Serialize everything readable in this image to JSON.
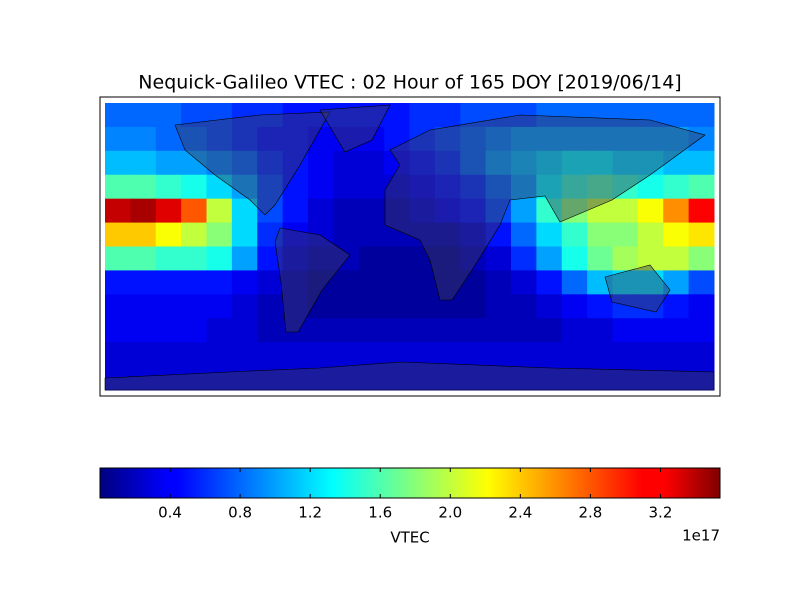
{
  "chart_data": {
    "type": "heatmap",
    "title": "Nequick-Galileo VTEC : 02 Hour of 165 DOY [2019/06/14]",
    "colormap": "jet",
    "clim": [
      0,
      3.54
    ],
    "colorbar_label": "VTEC",
    "colorbar_offset": "1e17",
    "colorbar_ticks": [
      0.4,
      0.8,
      1.2,
      1.6,
      {
        "value": 2,
        "label": "2.0"
      },
      2.4,
      2.8,
      3.2
    ],
    "z": [
      [
        0.8,
        0.8,
        0.8,
        0.7,
        0.7,
        0.6,
        0.6,
        0.5,
        0.5,
        0.5,
        0.5,
        0.5,
        0.6,
        0.6,
        0.7,
        0.7,
        0.7,
        0.8,
        0.8,
        0.8,
        0.8,
        0.8,
        0.8,
        0.8
      ],
      [
        0.9,
        0.9,
        0.8,
        0.8,
        0.7,
        0.6,
        0.5,
        0.5,
        0.4,
        0.4,
        0.4,
        0.5,
        0.6,
        0.7,
        0.8,
        0.9,
        1.0,
        1.0,
        1.0,
        1.0,
        1.0,
        1.0,
        1.0,
        0.9
      ],
      [
        1.1,
        1.1,
        1.0,
        1.0,
        0.9,
        0.8,
        0.6,
        0.5,
        0.4,
        0.3,
        0.3,
        0.4,
        0.5,
        0.6,
        0.8,
        1.0,
        1.1,
        1.2,
        1.3,
        1.3,
        1.2,
        1.2,
        1.1,
        1.1
      ],
      [
        1.6,
        1.6,
        1.5,
        1.4,
        1.2,
        1.0,
        0.7,
        0.5,
        0.4,
        0.3,
        0.3,
        0.3,
        0.4,
        0.5,
        0.6,
        0.8,
        1.0,
        1.3,
        1.5,
        1.6,
        1.5,
        1.4,
        1.5,
        1.6
      ],
      [
        3.3,
        3.4,
        3.2,
        2.8,
        2.0,
        1.2,
        0.7,
        0.5,
        0.3,
        0.2,
        0.2,
        0.2,
        0.3,
        0.4,
        0.5,
        0.7,
        1.0,
        1.5,
        1.8,
        2.0,
        2.0,
        2.2,
        2.6,
        3.1
      ],
      [
        2.4,
        2.4,
        2.2,
        2.0,
        1.8,
        1.2,
        0.6,
        0.4,
        0.3,
        0.2,
        0.2,
        0.2,
        0.2,
        0.2,
        0.3,
        0.5,
        0.8,
        1.2,
        1.5,
        1.8,
        1.8,
        2.0,
        2.2,
        2.3
      ],
      [
        1.6,
        1.6,
        1.5,
        1.5,
        1.4,
        1.0,
        0.5,
        0.3,
        0.2,
        0.2,
        0.1,
        0.1,
        0.1,
        0.1,
        0.2,
        0.3,
        0.6,
        1.0,
        1.4,
        1.7,
        1.9,
        2.0,
        2.0,
        1.8
      ],
      [
        0.5,
        0.5,
        0.5,
        0.5,
        0.5,
        0.4,
        0.3,
        0.2,
        0.1,
        0.1,
        0.1,
        0.1,
        0.1,
        0.1,
        0.1,
        0.2,
        0.3,
        0.5,
        0.8,
        1.1,
        1.2,
        1.2,
        1.0,
        0.7
      ],
      [
        0.4,
        0.4,
        0.4,
        0.4,
        0.4,
        0.3,
        0.2,
        0.2,
        0.1,
        0.1,
        0.1,
        0.1,
        0.1,
        0.1,
        0.1,
        0.2,
        0.2,
        0.3,
        0.4,
        0.5,
        0.6,
        0.6,
        0.5,
        0.4
      ],
      [
        0.4,
        0.4,
        0.4,
        0.4,
        0.3,
        0.3,
        0.2,
        0.2,
        0.2,
        0.2,
        0.2,
        0.2,
        0.2,
        0.2,
        0.2,
        0.2,
        0.2,
        0.2,
        0.3,
        0.3,
        0.4,
        0.4,
        0.4,
        0.4
      ],
      [
        0.3,
        0.3,
        0.3,
        0.3,
        0.3,
        0.3,
        0.3,
        0.3,
        0.3,
        0.3,
        0.3,
        0.3,
        0.3,
        0.3,
        0.3,
        0.3,
        0.3,
        0.3,
        0.3,
        0.3,
        0.3,
        0.3,
        0.3,
        0.3
      ],
      [
        0.3,
        0.3,
        0.3,
        0.3,
        0.3,
        0.3,
        0.3,
        0.3,
        0.3,
        0.3,
        0.3,
        0.3,
        0.3,
        0.3,
        0.3,
        0.3,
        0.3,
        0.3,
        0.3,
        0.3,
        0.3,
        0.3,
        0.3,
        0.3
      ]
    ]
  }
}
